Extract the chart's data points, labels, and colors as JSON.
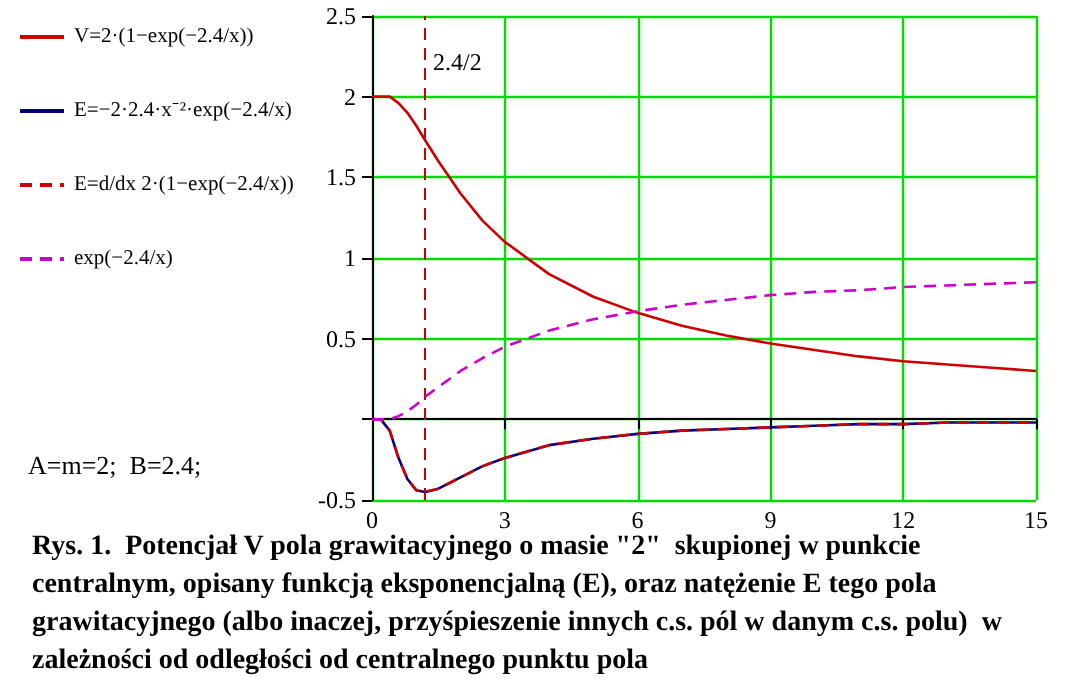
{
  "chart_data": {
    "type": "line",
    "x": [
      0,
      0.2,
      0.4,
      0.6,
      0.8,
      1,
      1.2,
      1.5,
      2,
      2.5,
      3,
      4,
      5,
      6,
      7,
      8,
      9,
      10,
      11,
      12,
      13,
      14,
      15
    ],
    "series": [
      {
        "name": "V=2·(1−exp(−2.4/x))",
        "color": "#cc0000",
        "line_style": "solid",
        "values": [
          2,
          2,
          2.0,
          1.96,
          1.9,
          1.82,
          1.73,
          1.6,
          1.4,
          1.23,
          1.1,
          0.9,
          0.76,
          0.66,
          0.58,
          0.52,
          0.47,
          0.43,
          0.39,
          0.36,
          0.34,
          0.32,
          0.3
        ]
      },
      {
        "name": "E=−2·2.4·x⁻²·exp(−2.4/x)",
        "color": "#000080",
        "line_style": "solid",
        "values": [
          0,
          0,
          -0.07,
          -0.24,
          -0.37,
          -0.44,
          -0.45,
          -0.43,
          -0.36,
          -0.29,
          -0.24,
          -0.16,
          -0.12,
          -0.09,
          -0.07,
          -0.06,
          -0.05,
          -0.04,
          -0.03,
          -0.03,
          -0.02,
          -0.02,
          -0.02
        ]
      },
      {
        "name": "E=d/dx 2·(1−exp(−2.4/x))",
        "color": "#cc0000",
        "line_style": "dashed",
        "values": [
          0,
          0,
          -0.07,
          -0.24,
          -0.37,
          -0.44,
          -0.45,
          -0.43,
          -0.36,
          -0.29,
          -0.24,
          -0.16,
          -0.12,
          -0.09,
          -0.07,
          -0.06,
          -0.05,
          -0.04,
          -0.03,
          -0.03,
          -0.02,
          -0.02,
          -0.02
        ]
      },
      {
        "name": "exp(−2.4/x)",
        "color": "#cc00cc",
        "line_style": "dashed",
        "values": [
          0,
          0,
          0.0,
          0.02,
          0.05,
          0.09,
          0.14,
          0.2,
          0.3,
          0.38,
          0.45,
          0.55,
          0.62,
          0.67,
          0.71,
          0.74,
          0.77,
          0.79,
          0.8,
          0.82,
          0.83,
          0.84,
          0.85
        ]
      }
    ],
    "xlim": [
      0,
      15
    ],
    "xticks": [
      0,
      3,
      6,
      9,
      12,
      15
    ],
    "ylim": [
      -0.5,
      2.5
    ],
    "yticks": [
      -0.5,
      {
        "value": 0,
        "label": null
      },
      0.5,
      1,
      1.5,
      2,
      2.5
    ],
    "grid": true,
    "legend": "left",
    "marker": "none",
    "ref_lines": [
      {
        "axis": "x",
        "value": 1.2,
        "color": "#cc0000",
        "line_style": "dashed"
      }
    ],
    "annotations": [
      {
        "text": "2.4/2",
        "x": 1.2,
        "y": 2.2
      },
      "A=m=2;  B=2.4;",
      "Rys. 1.  Potencjał V pola grawitacyjnego o masie \"2\"  skupionej w punkcie centralnym, opisany funkcją eksponencjalną (E), oraz natężenie E tego pola grawitacyjnego (albo inaczej, przyśpieszenie innych c.s. pól w danym c.s. polu)  w zależności od odległości od centralnego punktu pola"
    ]
  }
}
